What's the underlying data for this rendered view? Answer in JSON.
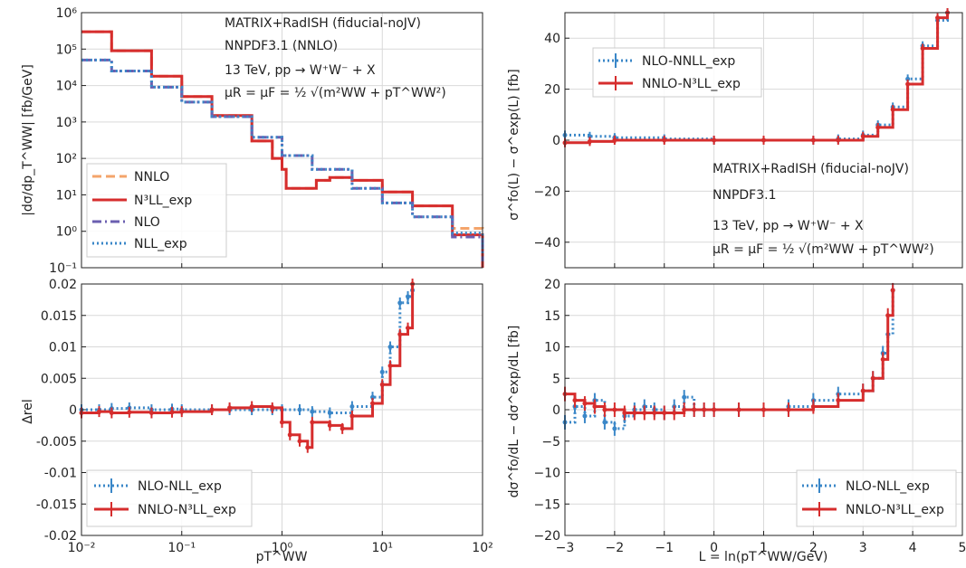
{
  "panels": {
    "tl": {
      "ylabel": "|dσ/dp_T^WW| [fb/GeV]",
      "yticks": [
        "10⁻¹",
        "10⁰",
        "10¹",
        "10²",
        "10³",
        "10⁴",
        "10⁵",
        "10⁶"
      ],
      "annotations": [
        "MATRIX+RadISH (fiducial-noJV)",
        "NNPDF3.1 (NNLO)",
        "13 TeV, pp → W⁺W⁻ + X",
        "μR = μF = ½ √(m²WW + pT^WW²)"
      ],
      "legend": [
        "NNLO",
        "N³LL_exp",
        "NLO",
        "NLL_exp"
      ]
    },
    "bl": {
      "ylabel": "Δrel",
      "yticks": [
        "-0.02",
        "-0.015",
        "-0.01",
        "-0.005",
        "0",
        "0.005",
        "0.01",
        "0.015",
        "0.02"
      ],
      "xticks": [
        "10⁻²",
        "10⁻¹",
        "10⁰",
        "10¹",
        "10²"
      ],
      "xlabel": "pT^WW",
      "legend": [
        "NLO-NLL_exp",
        "NNLO-N³LL_exp"
      ]
    },
    "tr": {
      "ylabel": "σ^fo(L) − σ^exp(L) [fb]",
      "yticks": [
        "−40",
        "−20",
        "0",
        "20",
        "40"
      ],
      "annotations": [
        "MATRIX+RadISH (fiducial-noJV)",
        "NNPDF3.1",
        "13 TeV, pp → W⁺W⁻ + X",
        "μR = μF = ½ √(m²WW + pT^WW²)"
      ],
      "legend": [
        "NLO-NNLL_exp",
        "NNLO-N³LL_exp"
      ]
    },
    "br": {
      "ylabel": "dσ^fo/dL − dσ^exp/dL [fb]",
      "yticks": [
        "−20",
        "−15",
        "−10",
        "−5",
        "0",
        "5",
        "10",
        "15",
        "20"
      ],
      "xticks": [
        "−3",
        "−2",
        "−1",
        "0",
        "1",
        "2",
        "3",
        "4",
        "5"
      ],
      "xlabel": "L = ln(pT^WW/GeV)",
      "legend": [
        "NLO-NLL_exp",
        "NNLO-N³LL_exp"
      ]
    }
  },
  "colors": {
    "nnlo": "#f4a46b",
    "n3ll": "#d62d2d",
    "nlo": "#6b5fb0",
    "nll": "#3a87c8",
    "diff_blue": "#3a87c8",
    "diff_red": "#d62d2d"
  },
  "chart_data": [
    {
      "id": "tl",
      "type": "line",
      "x_scale": "log",
      "y_scale": "log",
      "xlim": [
        0.01,
        100
      ],
      "ylim": [
        0.1,
        1000000
      ],
      "ylabel": "|dσ/dp_T^WW| [fb/GeV]",
      "series": [
        {
          "name": "NNLO",
          "style": "dashed",
          "color": "#f4a46b",
          "x": [
            0.01,
            0.02,
            0.05,
            0.1,
            0.2,
            0.5,
            0.8,
            1.0,
            1.1,
            1.2,
            1.5,
            2.0,
            2.2,
            3,
            5,
            10,
            20,
            50,
            100
          ],
          "y": [
            300000,
            90000,
            18000,
            5000,
            1500,
            300,
            100,
            50,
            15,
            15,
            15,
            15,
            25,
            30,
            25,
            12,
            5,
            1.2,
            0.5
          ]
        },
        {
          "name": "N³LL_exp",
          "style": "solid",
          "color": "#d62d2d",
          "x": [
            0.01,
            0.02,
            0.05,
            0.1,
            0.2,
            0.5,
            0.8,
            1.0,
            1.1,
            1.2,
            1.5,
            2.0,
            2.2,
            3,
            5,
            10,
            20,
            50,
            100
          ],
          "y": [
            300000,
            90000,
            18000,
            5000,
            1500,
            300,
            100,
            50,
            15,
            15,
            15,
            15,
            25,
            30,
            25,
            12,
            5,
            0.8,
            0.1
          ]
        },
        {
          "name": "NLO",
          "style": "dashdot",
          "color": "#6b5fb0",
          "x": [
            0.01,
            0.02,
            0.05,
            0.1,
            0.2,
            0.5,
            1,
            2,
            5,
            10,
            20,
            50,
            100
          ],
          "y": [
            50000,
            25000,
            9000,
            3500,
            1400,
            380,
            120,
            50,
            15,
            6,
            2.5,
            0.7,
            0.15
          ]
        },
        {
          "name": "NLL_exp",
          "style": "dotted",
          "color": "#3a87c8",
          "x": [
            0.01,
            0.02,
            0.05,
            0.1,
            0.2,
            0.5,
            1,
            2,
            5,
            10,
            20,
            50,
            100
          ],
          "y": [
            50000,
            25000,
            9000,
            3500,
            1400,
            380,
            120,
            50,
            15,
            6,
            2.5,
            0.9,
            0.25
          ]
        }
      ]
    },
    {
      "id": "bl",
      "type": "line",
      "x_scale": "log",
      "xlim": [
        0.01,
        100
      ],
      "ylim": [
        -0.02,
        0.02
      ],
      "xlabel": "pT^WW",
      "ylabel": "Δrel",
      "series": [
        {
          "name": "NLO-NLL_exp",
          "style": "dotted",
          "color": "#3a87c8",
          "x": [
            0.01,
            0.015,
            0.02,
            0.03,
            0.05,
            0.08,
            0.1,
            0.2,
            0.3,
            0.5,
            0.8,
            1,
            1.5,
            2,
            3,
            5,
            8,
            10,
            12,
            15,
            18,
            20
          ],
          "y": [
            0,
            0,
            0.0002,
            0.0003,
            0,
            0.0001,
            0,
            0,
            0,
            0,
            0,
            0,
            0,
            -0.0003,
            -0.0005,
            0.0005,
            0.002,
            0.006,
            0.01,
            0.017,
            0.018,
            0.019
          ]
        },
        {
          "name": "NNLO-N³LL_exp",
          "style": "solid",
          "color": "#d62d2d",
          "x": [
            0.01,
            0.015,
            0.02,
            0.03,
            0.05,
            0.08,
            0.1,
            0.2,
            0.3,
            0.5,
            0.8,
            1,
            1.2,
            1.5,
            1.8,
            2,
            3,
            4,
            5,
            8,
            10,
            12,
            15,
            18,
            20
          ],
          "y": [
            -0.0005,
            -0.0003,
            -0.0005,
            -0.0004,
            -0.0005,
            -0.0004,
            -0.0003,
            0,
            0.0003,
            0.0005,
            0.0003,
            -0.002,
            -0.004,
            -0.005,
            -0.006,
            -0.002,
            -0.0025,
            -0.003,
            -0.001,
            0.001,
            0.004,
            0.007,
            0.012,
            0.013,
            0.02
          ]
        }
      ]
    },
    {
      "id": "tr",
      "type": "line",
      "xlim": [
        -3,
        5
      ],
      "ylim": [
        -50,
        50
      ],
      "ylabel": "σ^fo(L) − σ^exp(L) [fb]",
      "series": [
        {
          "name": "NLO-NNLL_exp",
          "style": "dotted",
          "color": "#3a87c8",
          "x": [
            -3,
            -2.5,
            -2,
            -1,
            0,
            1,
            2,
            2.5,
            3,
            3.3,
            3.6,
            3.9,
            4.2,
            4.5,
            4.7
          ],
          "y": [
            2,
            1.5,
            1,
            0.5,
            0,
            0,
            0,
            0.5,
            2,
            6,
            13,
            24,
            37,
            47,
            52
          ]
        },
        {
          "name": "NNLO-N³LL_exp",
          "style": "solid",
          "color": "#d62d2d",
          "x": [
            -3,
            -2.5,
            -2,
            -1,
            0,
            1,
            2,
            2.5,
            3,
            3.3,
            3.6,
            3.9,
            4.2,
            4.5,
            4.7
          ],
          "y": [
            -1,
            -0.5,
            0,
            0,
            0,
            0,
            0,
            0,
            1.5,
            5,
            12,
            22,
            36,
            48,
            52
          ]
        }
      ]
    },
    {
      "id": "br",
      "type": "line",
      "xlim": [
        -3,
        5
      ],
      "ylim": [
        -20,
        20
      ],
      "xlabel": "L = ln(pT^WW/GeV)",
      "ylabel": "dσ^fo/dL − dσ^exp/dL [fb]",
      "series": [
        {
          "name": "NLO-NLL_exp",
          "style": "dotted",
          "color": "#3a87c8",
          "x": [
            -3,
            -2.8,
            -2.6,
            -2.4,
            -2.2,
            -2,
            -1.8,
            -1.6,
            -1.4,
            -1.2,
            -1,
            -0.8,
            -0.6,
            -0.4,
            -0.2,
            0,
            0.5,
            1,
            1.5,
            2,
            2.5,
            3,
            3.2,
            3.4,
            3.5,
            3.6
          ],
          "y": [
            -2,
            0.5,
            -1,
            1.5,
            -2,
            -3,
            -1,
            0,
            0.5,
            0,
            -0.5,
            0.5,
            2,
            0,
            0,
            0,
            0,
            0,
            0.5,
            1.5,
            2.5,
            3,
            5,
            9,
            12,
            19
          ]
        },
        {
          "name": "NNLO-N³LL_exp",
          "style": "solid",
          "color": "#d62d2d",
          "x": [
            -3,
            -2.8,
            -2.6,
            -2.4,
            -2.2,
            -2,
            -1.8,
            -1.6,
            -1.4,
            -1.2,
            -1,
            -0.8,
            -0.6,
            -0.4,
            -0.2,
            0,
            0.5,
            1,
            1.5,
            2,
            2.5,
            3,
            3.2,
            3.4,
            3.5,
            3.6
          ],
          "y": [
            2.5,
            1.5,
            1,
            0.5,
            0,
            0,
            -0.5,
            -0.5,
            -0.5,
            -0.5,
            -0.5,
            -0.5,
            0,
            0,
            0,
            0,
            0,
            0,
            0,
            0.5,
            1.5,
            3,
            5,
            8,
            15,
            19
          ]
        }
      ]
    }
  ]
}
